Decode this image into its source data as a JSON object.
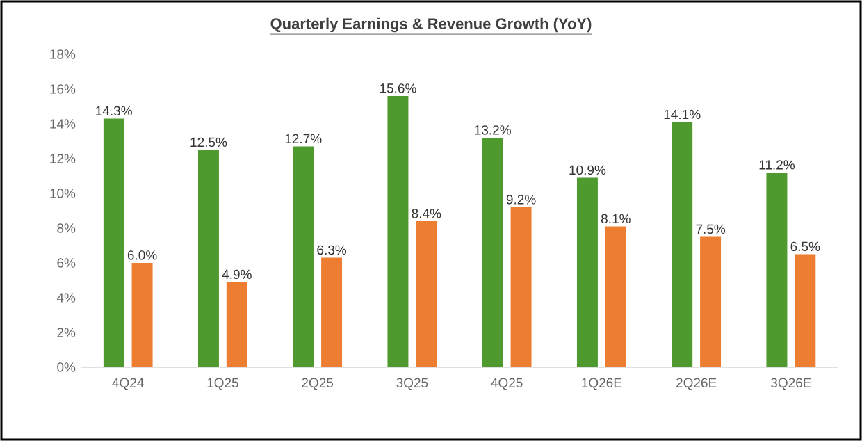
{
  "chart_data": {
    "type": "bar",
    "title": "Quarterly Earnings & Revenue Growth (YoY)",
    "categories": [
      "4Q24",
      "1Q25",
      "2Q25",
      "3Q25",
      "4Q25",
      "1Q26E",
      "2Q26E",
      "3Q26E"
    ],
    "series": [
      {
        "color": "#4f9a2f",
        "values": [
          14.3,
          12.5,
          12.7,
          15.6,
          13.2,
          10.9,
          14.1,
          11.2
        ],
        "value_labels": [
          "14.3%",
          "12.5%",
          "12.7%",
          "15.6%",
          "13.2%",
          "10.9%",
          "14.1%",
          "11.2%"
        ]
      },
      {
        "color": "#ed7d31",
        "values": [
          6.0,
          4.9,
          6.3,
          8.4,
          9.2,
          8.1,
          7.5,
          6.5
        ],
        "value_labels": [
          "6.0%",
          "4.9%",
          "6.3%",
          "8.4%",
          "9.2%",
          "8.1%",
          "7.5%",
          "6.5%"
        ]
      }
    ],
    "ylim": [
      0,
      18
    ],
    "yticks": [
      {
        "value": 0,
        "label": "0%"
      },
      {
        "value": 2,
        "label": "2%"
      },
      {
        "value": 4,
        "label": "4%"
      },
      {
        "value": 6,
        "label": "6%"
      },
      {
        "value": 8,
        "label": "8%"
      },
      {
        "value": 10,
        "label": "10%"
      },
      {
        "value": 12,
        "label": "12%"
      },
      {
        "value": 14,
        "label": "14%"
      },
      {
        "value": 16,
        "label": "16%"
      },
      {
        "value": 18,
        "label": "18%"
      }
    ],
    "grid": false
  }
}
